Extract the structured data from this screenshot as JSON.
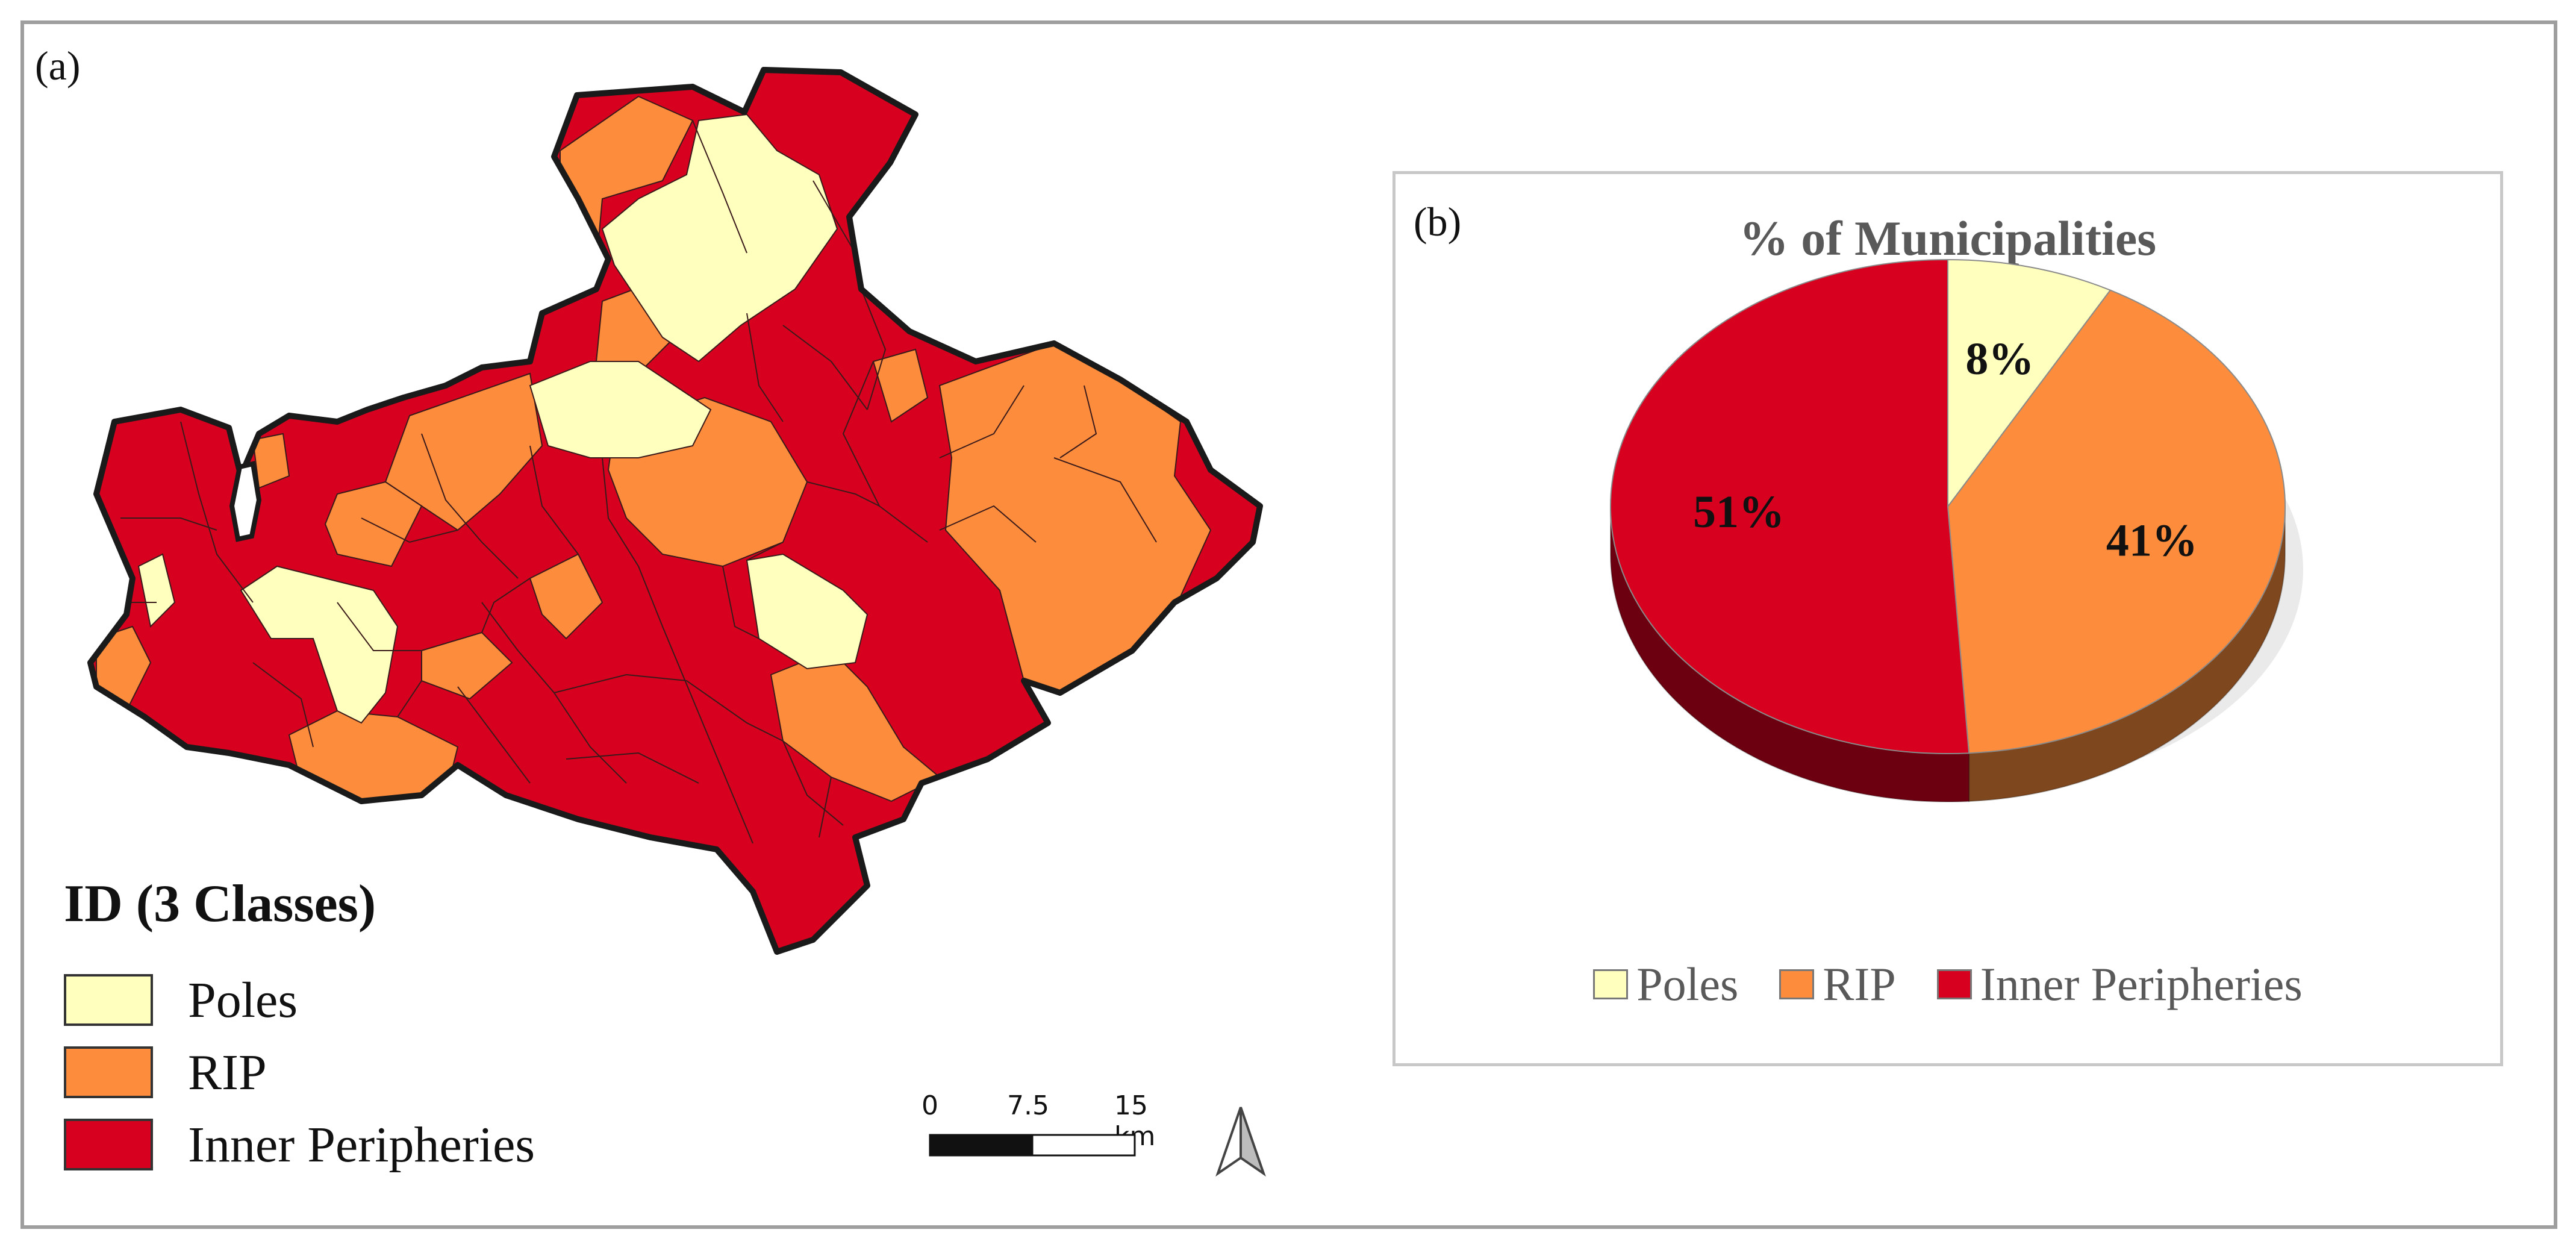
{
  "panel_a": {
    "label": "(a)",
    "legend": {
      "title": "ID (3 Classes)",
      "classes": [
        {
          "name": "Poles",
          "color": "#ffffbe"
        },
        {
          "name": "RIP",
          "color": "#fd8d3c"
        },
        {
          "name": "Inner Peripheries",
          "color": "#d7001f"
        }
      ]
    },
    "scalebar": {
      "labels": [
        "0",
        "7.5",
        "15 km"
      ]
    },
    "north_arrow": "north-arrow-icon"
  },
  "panel_b": {
    "label": "(b)",
    "chart_data": {
      "type": "pie",
      "title": "% of Municipalities",
      "categories": [
        "Poles",
        "RIP",
        "Inner Peripheries"
      ],
      "values": [
        8,
        41,
        51
      ],
      "labels": [
        "8%",
        "41%",
        "51%"
      ],
      "colors": [
        "#ffffbe",
        "#fd8d3c",
        "#d7001f"
      ],
      "legend_position": "bottom",
      "style": "3d"
    }
  }
}
